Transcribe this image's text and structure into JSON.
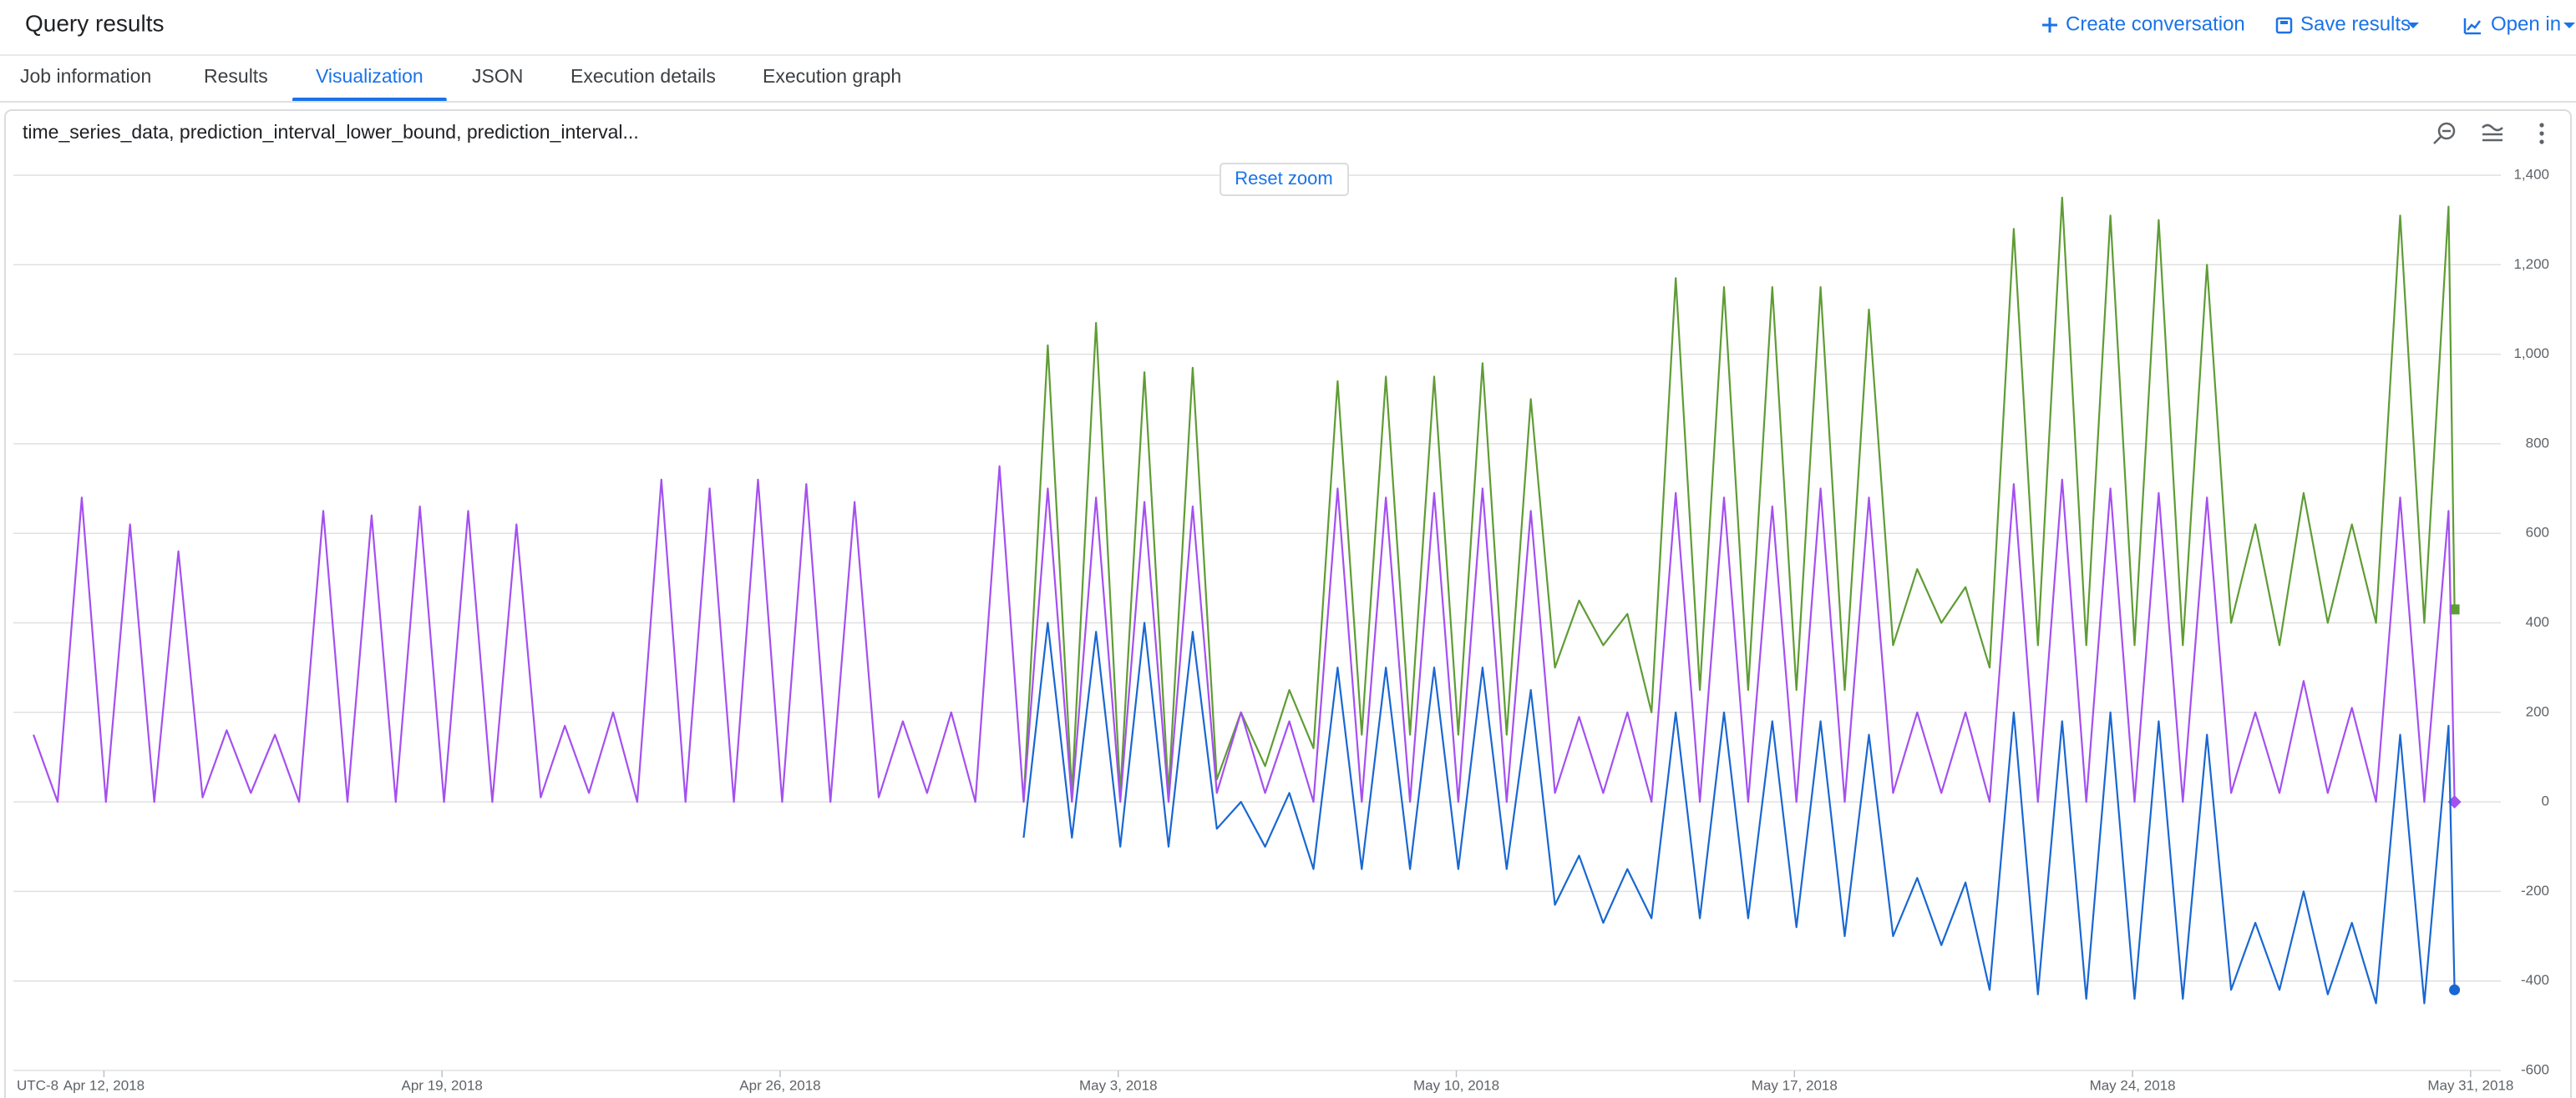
{
  "header": {
    "title": "Query results",
    "actions": [
      "Create conversation",
      "Save results",
      "Open in"
    ]
  },
  "tabs": [
    {
      "label": "Job information"
    },
    {
      "label": "Results"
    },
    {
      "label": "Visualization",
      "active": true
    },
    {
      "label": "JSON"
    },
    {
      "label": "Execution details"
    },
    {
      "label": "Execution graph"
    }
  ],
  "chart_data": {
    "type": "line",
    "title": "time_series_data, prediction_interval_lower_bound, prediction_interval...",
    "reset_zoom": "Reset zoom",
    "timezone": "UTC-8",
    "x": [
      "2018-04-10T13:00",
      "2018-04-11T01:00",
      "2018-04-11T13:00",
      "2018-04-12T01:00",
      "2018-04-12T13:00",
      "2018-04-13T01:00",
      "2018-04-13T13:00",
      "2018-04-14T01:00",
      "2018-04-14T13:00",
      "2018-04-15T01:00",
      "2018-04-15T13:00",
      "2018-04-16T01:00",
      "2018-04-16T13:00",
      "2018-04-17T01:00",
      "2018-04-17T13:00",
      "2018-04-18T01:00",
      "2018-04-18T13:00",
      "2018-04-19T01:00",
      "2018-04-19T13:00",
      "2018-04-20T01:00",
      "2018-04-20T13:00",
      "2018-04-21T01:00",
      "2018-04-21T13:00",
      "2018-04-22T01:00",
      "2018-04-22T13:00",
      "2018-04-23T01:00",
      "2018-04-23T13:00",
      "2018-04-24T01:00",
      "2018-04-24T13:00",
      "2018-04-25T01:00",
      "2018-04-25T13:00",
      "2018-04-26T01:00",
      "2018-04-26T13:00",
      "2018-04-27T01:00",
      "2018-04-27T13:00",
      "2018-04-28T01:00",
      "2018-04-28T13:00",
      "2018-04-29T01:00",
      "2018-04-29T13:00",
      "2018-04-30T01:00",
      "2018-04-30T13:00",
      "2018-05-01T01:00",
      "2018-05-01T13:00",
      "2018-05-02T01:00",
      "2018-05-02T13:00",
      "2018-05-03T01:00",
      "2018-05-03T13:00",
      "2018-05-04T01:00",
      "2018-05-04T13:00",
      "2018-05-05T01:00",
      "2018-05-05T13:00",
      "2018-05-06T01:00",
      "2018-05-06T13:00",
      "2018-05-07T01:00",
      "2018-05-07T13:00",
      "2018-05-08T01:00",
      "2018-05-08T13:00",
      "2018-05-09T01:00",
      "2018-05-09T13:00",
      "2018-05-10T01:00",
      "2018-05-10T13:00",
      "2018-05-11T01:00",
      "2018-05-11T13:00",
      "2018-05-12T01:00",
      "2018-05-12T13:00",
      "2018-05-13T01:00",
      "2018-05-13T13:00",
      "2018-05-14T01:00",
      "2018-05-14T13:00",
      "2018-05-15T01:00",
      "2018-05-15T13:00",
      "2018-05-16T01:00",
      "2018-05-16T13:00",
      "2018-05-17T01:00",
      "2018-05-17T13:00",
      "2018-05-18T01:00",
      "2018-05-18T13:00",
      "2018-05-19T01:00",
      "2018-05-19T13:00",
      "2018-05-20T01:00",
      "2018-05-20T13:00",
      "2018-05-21T01:00",
      "2018-05-21T13:00",
      "2018-05-22T01:00",
      "2018-05-22T13:00",
      "2018-05-23T01:00",
      "2018-05-23T13:00",
      "2018-05-24T01:00",
      "2018-05-24T13:00",
      "2018-05-25T01:00",
      "2018-05-25T13:00",
      "2018-05-26T01:00",
      "2018-05-26T13:00",
      "2018-05-27T01:00",
      "2018-05-27T13:00",
      "2018-05-28T01:00",
      "2018-05-28T13:00",
      "2018-05-29T01:00",
      "2018-05-29T13:00",
      "2018-05-30T01:00",
      "2018-05-30T13:00",
      "2018-05-30T16:00"
    ],
    "series": [
      {
        "color": "#5f9c35",
        "marker": "square",
        "values": [
          null,
          null,
          null,
          null,
          null,
          null,
          null,
          null,
          null,
          null,
          null,
          null,
          null,
          null,
          null,
          null,
          null,
          null,
          null,
          null,
          null,
          null,
          null,
          null,
          null,
          null,
          null,
          null,
          null,
          null,
          null,
          null,
          null,
          null,
          null,
          null,
          null,
          null,
          null,
          null,
          null,
          0,
          1020,
          20,
          1070,
          20,
          960,
          20,
          970,
          50,
          200,
          80,
          250,
          120,
          940,
          150,
          950,
          150,
          950,
          150,
          980,
          150,
          900,
          300,
          450,
          350,
          420,
          200,
          1170,
          250,
          1150,
          250,
          1150,
          250,
          1150,
          250,
          1100,
          350,
          520,
          400,
          480,
          300,
          1280,
          350,
          1350,
          350,
          1310,
          350,
          1300,
          350,
          1200,
          400,
          620,
          350,
          690,
          400,
          620,
          400,
          1310,
          400,
          1330,
          430
        ]
      },
      {
        "color": "#a450f0",
        "marker": "diamond",
        "values": [
          150,
          0,
          680,
          0,
          620,
          0,
          560,
          10,
          160,
          20,
          150,
          0,
          650,
          0,
          640,
          0,
          660,
          0,
          650,
          0,
          620,
          10,
          170,
          20,
          200,
          0,
          720,
          0,
          700,
          0,
          720,
          0,
          710,
          0,
          670,
          10,
          180,
          20,
          200,
          0,
          750,
          0,
          700,
          0,
          680,
          0,
          670,
          0,
          660,
          20,
          200,
          20,
          180,
          0,
          700,
          0,
          680,
          0,
          690,
          0,
          700,
          0,
          650,
          20,
          190,
          20,
          200,
          0,
          690,
          0,
          680,
          0,
          660,
          0,
          700,
          0,
          680,
          20,
          200,
          20,
          200,
          0,
          710,
          0,
          720,
          0,
          700,
          0,
          690,
          0,
          680,
          20,
          200,
          20,
          270,
          20,
          210,
          0,
          680,
          0,
          650,
          0
        ]
      },
      {
        "color": "#1967d2",
        "marker": "circle",
        "values": [
          null,
          null,
          null,
          null,
          null,
          null,
          null,
          null,
          null,
          null,
          null,
          null,
          null,
          null,
          null,
          null,
          null,
          null,
          null,
          null,
          null,
          null,
          null,
          null,
          null,
          null,
          null,
          null,
          null,
          null,
          null,
          null,
          null,
          null,
          null,
          null,
          null,
          null,
          null,
          null,
          null,
          -80,
          400,
          -80,
          380,
          -100,
          400,
          -100,
          380,
          -60,
          0,
          -100,
          20,
          -150,
          300,
          -150,
          300,
          -150,
          300,
          -150,
          300,
          -150,
          250,
          -230,
          -120,
          -270,
          -150,
          -260,
          200,
          -260,
          200,
          -260,
          180,
          -280,
          180,
          -300,
          150,
          -300,
          -170,
          -320,
          -180,
          -420,
          200,
          -430,
          180,
          -440,
          200,
          -440,
          180,
          -440,
          150,
          -420,
          -270,
          -420,
          -200,
          -430,
          -270,
          -450,
          150,
          -450,
          170,
          -420
        ]
      }
    ],
    "xlim": [
      "2018-04-10T03:00",
      "2018-05-31T15:00"
    ],
    "xticks": [
      {
        "value": "2018-04-12T00:00",
        "label": "Apr 12, 2018"
      },
      {
        "value": "2018-04-19T00:00",
        "label": "Apr 19, 2018"
      },
      {
        "value": "2018-04-26T00:00",
        "label": "Apr 26, 2018"
      },
      {
        "value": "2018-05-03T00:00",
        "label": "May 3, 2018"
      },
      {
        "value": "2018-05-10T00:00",
        "label": "May 10, 2018"
      },
      {
        "value": "2018-05-17T00:00",
        "label": "May 17, 2018"
      },
      {
        "value": "2018-05-24T00:00",
        "label": "May 24, 2018"
      },
      {
        "value": "2018-05-31T00:00",
        "label": "May 31, 2018"
      }
    ],
    "ylim": [
      -600,
      1400
    ],
    "yticks": [
      -600,
      -400,
      -200,
      0,
      200,
      400,
      600,
      800,
      {
        "value": 1000,
        "label": "1,000"
      },
      {
        "value": 1200,
        "label": "1,200"
      },
      {
        "value": 1400,
        "label": "1,400"
      }
    ],
    "grid": true
  }
}
